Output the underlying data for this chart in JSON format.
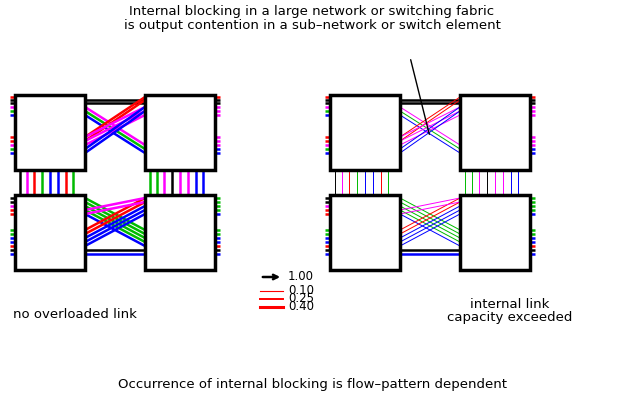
{
  "title_top1": "Internal blocking in a large network or switching fabric",
  "title_top2": "is output contention in a sub–network or switch element",
  "title_bottom": "Occurrence of internal blocking is flow–pattern dependent",
  "label_left": "no overloaded link",
  "label_right_1": "internal link",
  "label_right_2": "capacity exceeded",
  "legend": [
    {
      "label": "1.00",
      "color": "#000000",
      "lw": 2.0,
      "arrow": true
    },
    {
      "label": "0.10",
      "color": "#ff0000",
      "lw": 0.8,
      "arrow": false
    },
    {
      "label": "0.25",
      "color": "#ff0000",
      "lw": 1.4,
      "arrow": false
    },
    {
      "label": "0.40",
      "color": "#dd0000",
      "lw": 2.2,
      "arrow": false
    }
  ],
  "bg_color": "#ffffff",
  "c_black": "#000000",
  "c_red": "#ff0000",
  "c_green": "#00bb00",
  "c_blue": "#0000ff",
  "c_mag": "#ff00ff",
  "lw": 1.8
}
